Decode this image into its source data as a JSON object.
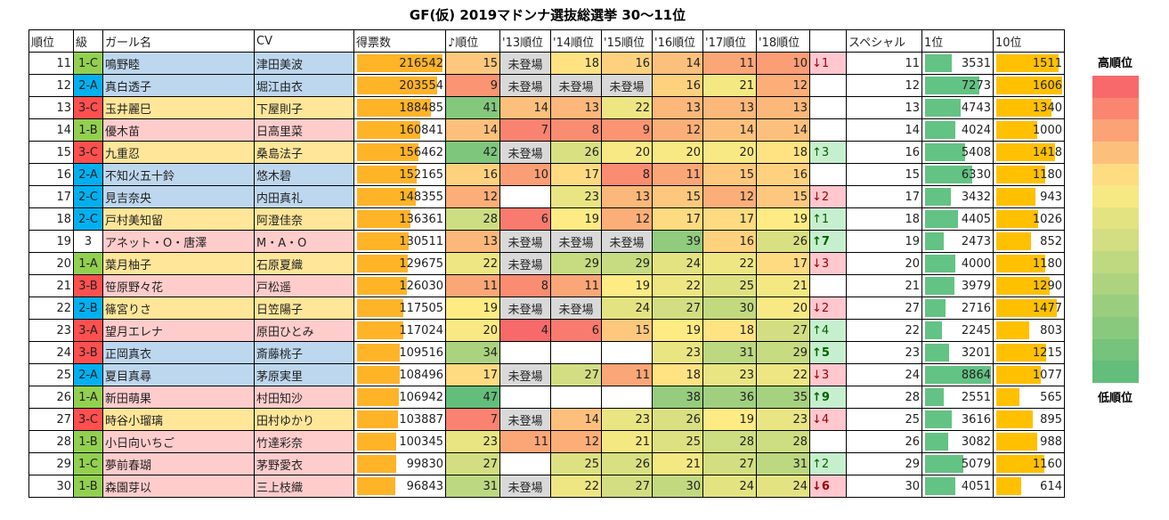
{
  "title": "GF(仮) 2019マドンナ選抜総選挙 30～11位",
  "headers": [
    "順位",
    "級",
    "ガール名",
    "CV",
    "得票数",
    "♪順位",
    "'13順位",
    "'14順位",
    "'15順位",
    "'16順位",
    "'17順位",
    "'18順位",
    "",
    "スペシャル",
    "1位",
    "10位"
  ],
  "legend": {
    "high": "高順位",
    "low": "低順位"
  },
  "colors": {
    "class1": "#92d050",
    "class2": "#00b0f0",
    "class3": "#ff4f4f",
    "blue": "#bdd7ee",
    "yellow": "#ffe699",
    "pink": "#ffcccc",
    "votes_bar": "#ffb327",
    "first_bar": "#63c384",
    "tenth_bar": "#ffc000"
  },
  "rows": [
    {
      "rank": 11,
      "cls": "1-C",
      "name": "鳴野睦",
      "cv": "津田美波",
      "bg": "blue",
      "votes": 216542,
      "music": 15,
      "years": [
        "未登場",
        18,
        16,
        14,
        11,
        10
      ],
      "change": "↓1",
      "dir": "dn",
      "bold": false,
      "special": 11,
      "first": 3531,
      "tenth": 1511
    },
    {
      "rank": 12,
      "cls": "2-A",
      "name": "真白透子",
      "cv": "堀江由衣",
      "bg": "blue",
      "votes": 203554,
      "music": 9,
      "years": [
        "未登場",
        "未登場",
        "未登場",
        16,
        21,
        12
      ],
      "change": "",
      "dir": "",
      "bold": false,
      "special": 12,
      "first": 7273,
      "tenth": 1606
    },
    {
      "rank": 13,
      "cls": "3-C",
      "name": "玉井麗巳",
      "cv": "下屋則子",
      "bg": "yellow",
      "votes": 188485,
      "music": 41,
      "years": [
        14,
        13,
        22,
        13,
        13,
        13
      ],
      "change": "",
      "dir": "",
      "bold": false,
      "special": 13,
      "first": 4743,
      "tenth": 1340
    },
    {
      "rank": 14,
      "cls": "1-B",
      "name": "優木苗",
      "cv": "日高里菜",
      "bg": "pink",
      "votes": 160841,
      "music": 14,
      "years": [
        7,
        8,
        9,
        12,
        14,
        14
      ],
      "change": "",
      "dir": "",
      "bold": false,
      "special": 14,
      "first": 4024,
      "tenth": 1000
    },
    {
      "rank": 15,
      "cls": "3-C",
      "name": "九重忍",
      "cv": "桑島法子",
      "bg": "yellow",
      "votes": 156462,
      "music": 42,
      "years": [
        "未登場",
        26,
        20,
        20,
        20,
        18
      ],
      "change": "↑3",
      "dir": "up",
      "bold": false,
      "special": 16,
      "first": 5408,
      "tenth": 1418
    },
    {
      "rank": 16,
      "cls": "2-A",
      "name": "不知火五十鈴",
      "cv": "悠木碧",
      "bg": "blue",
      "votes": 152165,
      "music": 16,
      "years": [
        10,
        17,
        8,
        11,
        15,
        16
      ],
      "change": "",
      "dir": "",
      "bold": false,
      "special": 15,
      "first": 6330,
      "tenth": 1180
    },
    {
      "rank": 17,
      "cls": "2-C",
      "name": "見吉奈央",
      "cv": "内田真礼",
      "bg": "blue",
      "votes": 148355,
      "music": 12,
      "years": [
        null,
        23,
        13,
        15,
        12,
        15
      ],
      "change": "↓2",
      "dir": "dn",
      "bold": false,
      "special": 17,
      "first": 3432,
      "tenth": 943
    },
    {
      "rank": 18,
      "cls": "2-C",
      "name": "戸村美知留",
      "cv": "阿澄佳奈",
      "bg": "yellow",
      "votes": 136361,
      "music": 28,
      "years": [
        6,
        19,
        12,
        17,
        17,
        19
      ],
      "change": "↑1",
      "dir": "up",
      "bold": false,
      "special": 18,
      "first": 4405,
      "tenth": 1026
    },
    {
      "rank": 19,
      "cls": "3",
      "name": "アネット・O・唐澤",
      "cv": "M・A・O",
      "bg": "pink",
      "votes": 130511,
      "music": 13,
      "years": [
        "未登場",
        "未登場",
        "未登場",
        39,
        16,
        26
      ],
      "change": "↑7",
      "dir": "up",
      "bold": true,
      "special": 19,
      "first": 2473,
      "tenth": 852
    },
    {
      "rank": 20,
      "cls": "1-A",
      "name": "葉月柚子",
      "cv": "石原夏織",
      "bg": "yellow",
      "votes": 129675,
      "music": 22,
      "years": [
        "未登場",
        29,
        29,
        24,
        22,
        17
      ],
      "change": "↓3",
      "dir": "dn",
      "bold": false,
      "special": 20,
      "first": 4000,
      "tenth": 1180
    },
    {
      "rank": 21,
      "cls": "3-B",
      "name": "笹原野々花",
      "cv": "戸松遥",
      "bg": "pink",
      "votes": 126030,
      "music": 11,
      "years": [
        8,
        11,
        19,
        22,
        25,
        21
      ],
      "change": "",
      "dir": "",
      "bold": false,
      "special": 21,
      "first": 3979,
      "tenth": 1290
    },
    {
      "rank": 22,
      "cls": "2-B",
      "name": "篠宮りさ",
      "cv": "日笠陽子",
      "bg": "yellow",
      "votes": 117505,
      "music": 19,
      "years": [
        "未登場",
        "未登場",
        24,
        27,
        30,
        20
      ],
      "change": "↓2",
      "dir": "dn",
      "bold": false,
      "special": 27,
      "first": 2716,
      "tenth": 1477
    },
    {
      "rank": 23,
      "cls": "3-A",
      "name": "望月エレナ",
      "cv": "原田ひとみ",
      "bg": "pink",
      "votes": 117024,
      "music": 20,
      "years": [
        4,
        6,
        15,
        19,
        18,
        27
      ],
      "change": "↑4",
      "dir": "up",
      "bold": false,
      "special": 22,
      "first": 2245,
      "tenth": 803
    },
    {
      "rank": 24,
      "cls": "3-B",
      "name": "正岡真衣",
      "cv": "斎藤桃子",
      "bg": "blue",
      "votes": 109516,
      "music": 34,
      "years": [
        null,
        null,
        null,
        23,
        31,
        29
      ],
      "change": "↑5",
      "dir": "up",
      "bold": true,
      "special": 23,
      "first": 3201,
      "tenth": 1215
    },
    {
      "rank": 25,
      "cls": "2-A",
      "name": "夏目真尋",
      "cv": "茅原実里",
      "bg": "blue",
      "votes": 108496,
      "music": 17,
      "years": [
        "未登場",
        27,
        11,
        18,
        23,
        22
      ],
      "change": "↓3",
      "dir": "dn",
      "bold": false,
      "special": 24,
      "first": 8864,
      "tenth": 1077
    },
    {
      "rank": 26,
      "cls": "1-A",
      "name": "新田萌果",
      "cv": "村田知沙",
      "bg": "pink",
      "votes": 106942,
      "music": 47,
      "years": [
        null,
        null,
        null,
        38,
        36,
        35
      ],
      "change": "↑9",
      "dir": "up",
      "bold": true,
      "special": 28,
      "first": 2551,
      "tenth": 565
    },
    {
      "rank": 27,
      "cls": "3-C",
      "name": "時谷小瑠璃",
      "cv": "田村ゆかり",
      "bg": "yellow",
      "votes": 103887,
      "music": 7,
      "years": [
        "未登場",
        14,
        23,
        26,
        19,
        23
      ],
      "change": "↓4",
      "dir": "dn",
      "bold": false,
      "special": 25,
      "first": 3616,
      "tenth": 895
    },
    {
      "rank": 28,
      "cls": "1-B",
      "name": "小日向いちご",
      "cv": "竹達彩奈",
      "bg": "pink",
      "votes": 100345,
      "music": 23,
      "years": [
        11,
        12,
        21,
        25,
        28,
        28
      ],
      "change": "",
      "dir": "",
      "bold": false,
      "special": 26,
      "first": 3082,
      "tenth": 988
    },
    {
      "rank": 29,
      "cls": "1-C",
      "name": "夢前春瑚",
      "cv": "茅野愛衣",
      "bg": "pink",
      "votes": 99830,
      "music": 27,
      "years": [
        null,
        25,
        26,
        21,
        27,
        31
      ],
      "change": "↑2",
      "dir": "up",
      "bold": false,
      "special": 29,
      "first": 5079,
      "tenth": 1160
    },
    {
      "rank": 30,
      "cls": "1-B",
      "name": "森園芽以",
      "cv": "三上枝織",
      "bg": "pink",
      "votes": 96843,
      "music": 31,
      "years": [
        "未登場",
        22,
        27,
        30,
        24,
        24
      ],
      "change": "↓6",
      "dir": "dn",
      "bold": true,
      "special": 30,
      "first": 4051,
      "tenth": 614
    }
  ]
}
